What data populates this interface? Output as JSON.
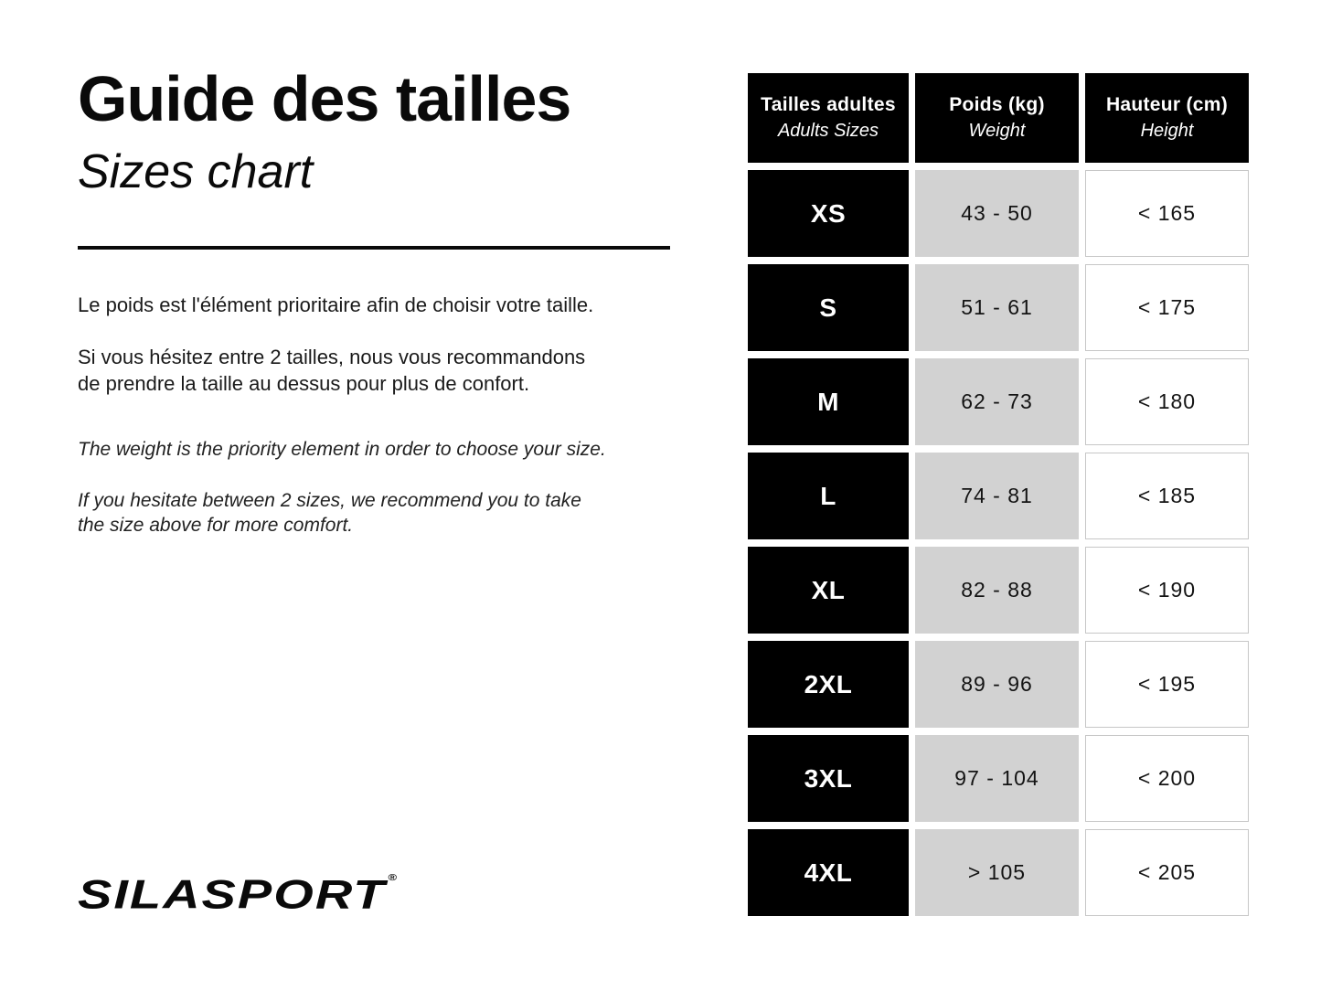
{
  "intro": {
    "title_fr": "Guide des tailles",
    "title_en": "Sizes chart",
    "paragraphs": [
      {
        "lang": "fr",
        "lines": [
          "Le poids est l'élément prioritaire afin de choisir votre taille."
        ]
      },
      {
        "lang": "fr",
        "lines": [
          "Si vous hésitez entre 2 tailles, nous vous recommandons",
          "de prendre la taille au dessus pour plus de confort."
        ]
      },
      {
        "lang": "en",
        "lines": [
          "The weight is the priority element in order to choose your size."
        ]
      },
      {
        "lang": "en",
        "lines": [
          "If you hesitate between 2 sizes, we recommend you to take",
          "the size above for more comfort."
        ]
      }
    ]
  },
  "logo": {
    "text": "SILASPORT",
    "registered_mark": "®"
  },
  "chart_data": {
    "type": "table",
    "title": "Guide des tailles / Sizes chart",
    "columns": [
      {
        "label_fr": "Tailles adultes",
        "label_en": "Adults Sizes"
      },
      {
        "label_fr": "Poids (kg)",
        "label_en": "Weight"
      },
      {
        "label_fr": "Hauteur (cm)",
        "label_en": "Height"
      }
    ],
    "rows": [
      {
        "size": "XS",
        "weight_kg": "43 - 50",
        "height_cm": "< 165"
      },
      {
        "size": "S",
        "weight_kg": "51 - 61",
        "height_cm": "< 175"
      },
      {
        "size": "M",
        "weight_kg": "62 - 73",
        "height_cm": "< 180"
      },
      {
        "size": "L",
        "weight_kg": "74 - 81",
        "height_cm": "< 185"
      },
      {
        "size": "XL",
        "weight_kg": "82 - 88",
        "height_cm": "< 190"
      },
      {
        "size": "2XL",
        "weight_kg": "89 - 96",
        "height_cm": "< 195"
      },
      {
        "size": "3XL",
        "weight_kg": "97 - 104",
        "height_cm": "< 200"
      },
      {
        "size": "4XL",
        "weight_kg": "> 105",
        "height_cm": "< 205"
      }
    ]
  },
  "colors": {
    "background": "#ffffff",
    "header_and_size_cell_bg": "#000000",
    "header_and_size_cell_text": "#ffffff",
    "weight_cell_bg": "#d2d2d2",
    "height_cell_border": "#c7c7c7",
    "text": "#111111"
  }
}
